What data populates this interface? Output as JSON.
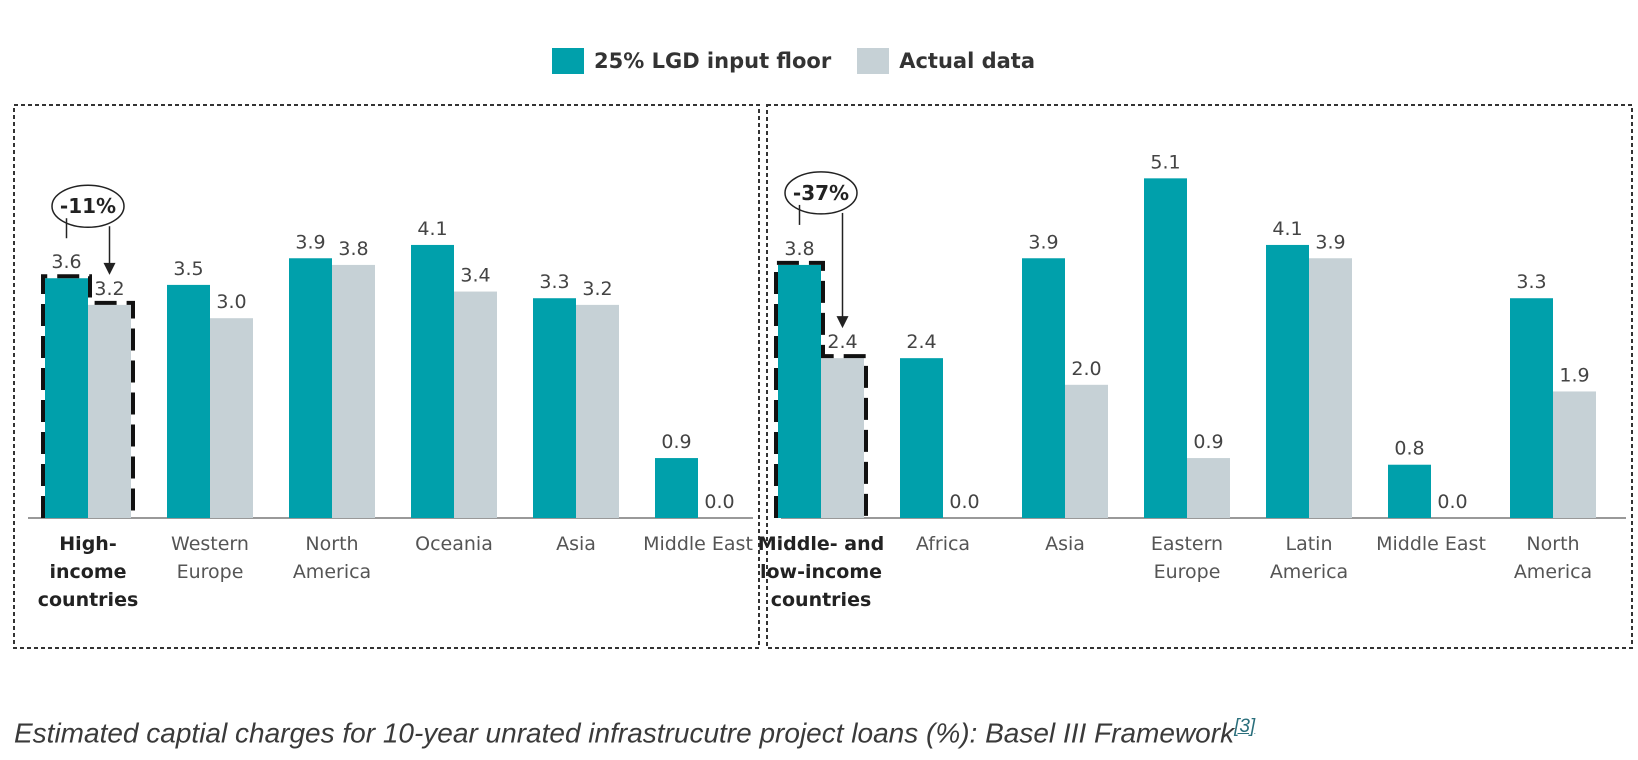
{
  "legend": {
    "series_a": "25% LGD input floor",
    "series_b": "Actual data",
    "color_a": "#00a0ab",
    "color_b": "#c6d1d6"
  },
  "caption": {
    "text": "Estimated captial charges for 10-year unrated infrastrucutre project loans (%): Basel III Framework",
    "ref": "[3]"
  },
  "chart_data": [
    {
      "type": "bar",
      "categories": [
        "High-\nincome\ncountries",
        "Western\nEurope",
        "North\nAmerica",
        "Oceania",
        "Asia",
        "Middle East"
      ],
      "series": [
        {
          "name": "25% LGD input floor",
          "values": [
            3.6,
            3.5,
            3.9,
            4.1,
            3.3,
            0.9
          ]
        },
        {
          "name": "Actual data",
          "values": [
            3.2,
            3.0,
            3.8,
            3.4,
            3.2,
            0.0
          ]
        }
      ],
      "annotation": "-11%",
      "bold_category": 0,
      "ylim": [
        0,
        5.3
      ],
      "grid": false
    },
    {
      "type": "bar",
      "categories": [
        "Middle- and\nlow-income\ncountries",
        "Africa",
        "Asia",
        "Eastern\nEurope",
        "Latin\nAmerica",
        "Middle East",
        "North\nAmerica"
      ],
      "series": [
        {
          "name": "25% LGD input floor",
          "values": [
            3.8,
            2.4,
            3.9,
            5.1,
            4.1,
            0.8,
            3.3
          ]
        },
        {
          "name": "Actual data",
          "values": [
            2.4,
            0.0,
            2.0,
            0.9,
            3.9,
            0.0,
            1.9
          ]
        }
      ],
      "annotation": "-37%",
      "bold_category": 0,
      "ylim": [
        0,
        5.3
      ],
      "grid": false
    }
  ]
}
